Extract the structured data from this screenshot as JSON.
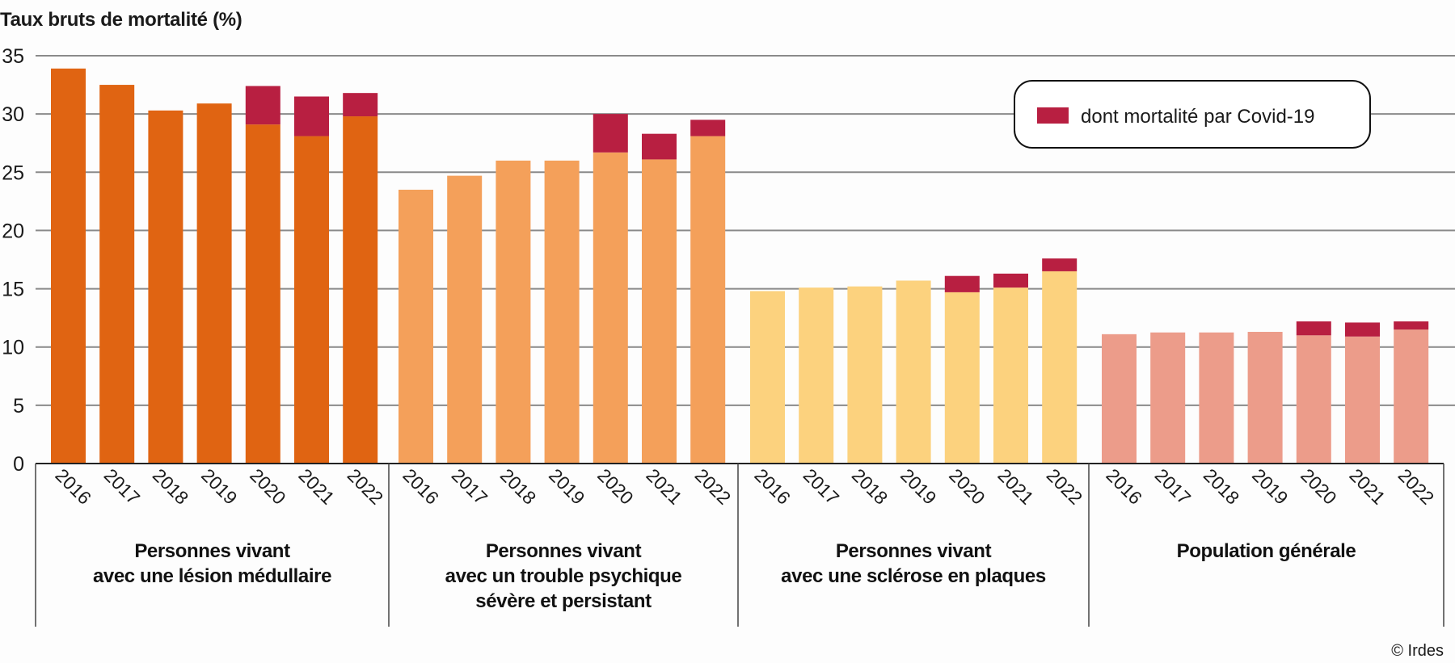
{
  "chart_data": {
    "type": "bar",
    "stacked": true,
    "title": "Taux bruts de mortalité (%)",
    "ylabel": "Taux bruts de mortalité (%)",
    "xlabel": "",
    "ylim": [
      0,
      35
    ],
    "yticks": [
      0,
      5,
      10,
      15,
      20,
      25,
      30,
      35
    ],
    "grid": true,
    "legend": {
      "position": "top-right",
      "entries": [
        {
          "label": "dont mortalité par Covid-19",
          "color": "#B81F41"
        }
      ]
    },
    "categories": [
      "2016",
      "2017",
      "2018",
      "2019",
      "2020",
      "2021",
      "2022"
    ],
    "groups": [
      {
        "label_lines": [
          "Personnes vivant",
          "avec une lésion médullaire"
        ],
        "color": "#E06412",
        "total": [
          33.9,
          32.5,
          30.3,
          30.9,
          32.4,
          31.5,
          31.8
        ],
        "covid": [
          0,
          0,
          0,
          0,
          3.3,
          3.4,
          2.0
        ]
      },
      {
        "label_lines": [
          "Personnes vivant",
          "avec un trouble psychique",
          "sévère et persistant"
        ],
        "color": "#F4A05A",
        "total": [
          23.5,
          24.7,
          26.0,
          26.0,
          30.0,
          28.3,
          29.5
        ],
        "covid": [
          0,
          0,
          0,
          0,
          3.3,
          2.2,
          1.4
        ]
      },
      {
        "label_lines": [
          "Personnes vivant",
          "avec une sclérose en plaques"
        ],
        "color": "#FCD27E",
        "total": [
          14.8,
          15.1,
          15.2,
          15.7,
          16.1,
          16.3,
          17.6
        ],
        "covid": [
          0,
          0,
          0,
          0,
          1.4,
          1.2,
          1.1
        ]
      },
      {
        "label_lines": [
          "Population générale"
        ],
        "color": "#EC9C8A",
        "total": [
          11.1,
          11.25,
          11.25,
          11.3,
          12.2,
          12.1,
          12.2
        ],
        "covid": [
          0,
          0,
          0,
          0,
          1.2,
          1.2,
          0.7
        ]
      }
    ],
    "covid_color": "#B81F41",
    "credit": "© Irdes"
  }
}
